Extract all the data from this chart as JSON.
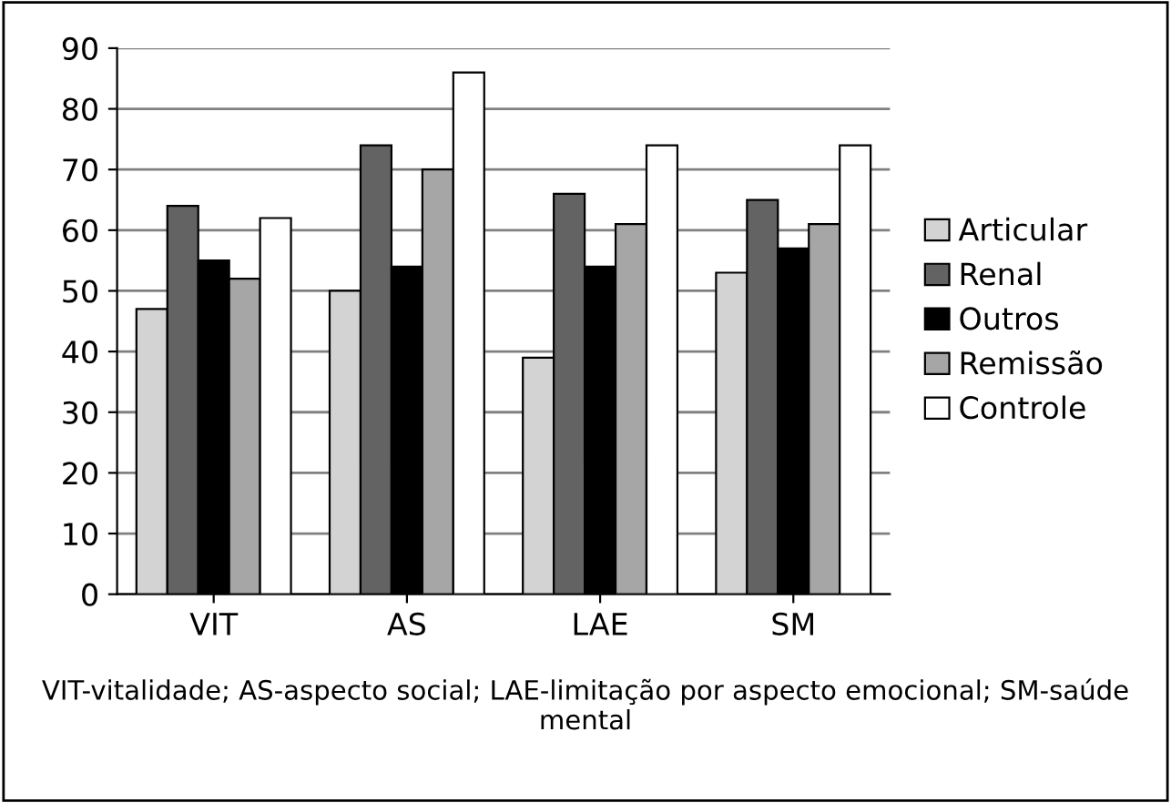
{
  "chart_data": {
    "type": "bar",
    "categories": [
      "VIT",
      "AS",
      "LAE",
      "SM"
    ],
    "series": [
      {
        "name": "Articular",
        "color": "#d3d3d3",
        "values": [
          47,
          50,
          39,
          53
        ]
      },
      {
        "name": "Renal",
        "color": "#636363",
        "values": [
          64,
          74,
          66,
          65
        ]
      },
      {
        "name": "Outros",
        "color": "#000000",
        "values": [
          55,
          54,
          54,
          57
        ]
      },
      {
        "name": "Remissão",
        "color": "#a6a6a6",
        "values": [
          52,
          70,
          61,
          61
        ]
      },
      {
        "name": "Controle",
        "color": "#ffffff",
        "values": [
          62,
          86,
          74,
          74
        ]
      }
    ],
    "ylim": [
      0,
      90
    ],
    "yticks": [
      0,
      10,
      20,
      30,
      40,
      50,
      60,
      70,
      80,
      90
    ],
    "grid": "y",
    "legend": "right",
    "annotations": [
      "VIT-vitalidade; AS-aspecto social; LAE-limitação por aspecto emocional; SM-saúde mental"
    ]
  }
}
